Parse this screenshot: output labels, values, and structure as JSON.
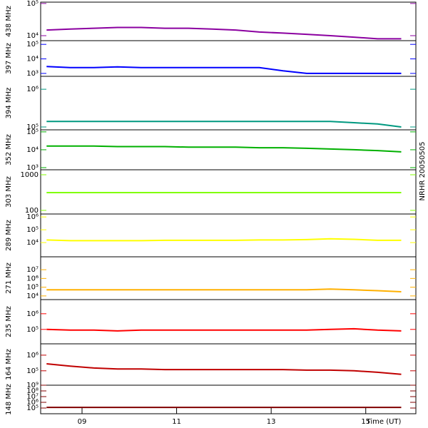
{
  "chart_data": [
    {
      "type": "line",
      "ylabel": "438 MHz",
      "color": "#8b00a0",
      "log_scale": true,
      "xlim": [
        8.125,
        16.06
      ],
      "ylim": [
        7000,
        110000
      ],
      "yticks": [
        {
          "value": 10000,
          "label": "10⁴"
        },
        {
          "value": 100000,
          "label": "10⁵"
        }
      ],
      "x": [
        8.25,
        8.75,
        9.25,
        9.75,
        10.25,
        10.75,
        11.25,
        11.75,
        12.25,
        12.75,
        13.25,
        13.75,
        14.25,
        14.75,
        15.25,
        15.75
      ],
      "values": [
        15000,
        16000,
        17000,
        18000,
        18000,
        17000,
        17000,
        16000,
        15000,
        13000,
        12000,
        11000,
        10000,
        9000,
        8000,
        8000
      ]
    },
    {
      "type": "line",
      "ylabel": "397 MHz",
      "color": "#0000ff",
      "log_scale": true,
      "xlim": [
        8.125,
        16.06
      ],
      "ylim": [
        630,
        180000
      ],
      "yticks": [
        {
          "value": 1000,
          "label": "10³"
        },
        {
          "value": 10000,
          "label": "10⁴"
        },
        {
          "value": 100000,
          "label": "10⁵"
        }
      ],
      "x": [
        8.25,
        8.75,
        9.25,
        9.75,
        10.25,
        10.75,
        11.25,
        11.75,
        12.25,
        12.75,
        13.25,
        13.75,
        14.25,
        14.75,
        15.25,
        15.75
      ],
      "values": [
        3000,
        2500,
        2500,
        2800,
        2500,
        2500,
        2500,
        2500,
        2500,
        2500,
        1500,
        1000,
        1000,
        1000,
        1000,
        1000
      ]
    },
    {
      "type": "line",
      "ylabel": "394 MHz",
      "color": "#009980",
      "log_scale": true,
      "xlim": [
        8.125,
        16.06
      ],
      "ylim": [
        84000,
        2200000
      ],
      "yticks": [
        {
          "value": 100000,
          "label": "10⁵"
        },
        {
          "value": 1000000,
          "label": "10⁶"
        }
      ],
      "x": [
        8.25,
        8.75,
        9.25,
        9.75,
        10.25,
        10.75,
        11.25,
        11.75,
        12.25,
        12.75,
        13.25,
        13.75,
        14.25,
        14.75,
        15.25,
        15.75
      ],
      "values": [
        140000,
        140000,
        140000,
        140000,
        140000,
        140000,
        140000,
        140000,
        140000,
        140000,
        140000,
        140000,
        140000,
        130000,
        120000,
        100000
      ]
    },
    {
      "type": "line",
      "ylabel": "352 MHz",
      "color": "#00b000",
      "log_scale": true,
      "xlim": [
        8.125,
        16.06
      ],
      "ylim": [
        760,
        130000
      ],
      "yticks": [
        {
          "value": 1000,
          "label": "10³"
        },
        {
          "value": 10000,
          "label": "10⁴"
        },
        {
          "value": 100000,
          "label": "10⁵"
        }
      ],
      "x": [
        8.25,
        8.75,
        9.25,
        9.75,
        10.25,
        10.75,
        11.25,
        11.75,
        12.25,
        12.75,
        13.25,
        13.75,
        14.25,
        14.75,
        15.25,
        15.75
      ],
      "values": [
        16000,
        16000,
        16000,
        15000,
        15000,
        15000,
        14000,
        14000,
        14000,
        13000,
        13000,
        12000,
        11000,
        10000,
        9000,
        7600
      ]
    },
    {
      "type": "line",
      "ylabel": "303 MHz",
      "color": "#80ff00",
      "log_scale": true,
      "xlim": [
        8.125,
        16.06
      ],
      "ylim": [
        79,
        1380
      ],
      "yticks": [
        100,
        1000
      ],
      "x": [
        8.25,
        8.75,
        9.25,
        9.75,
        10.25,
        10.75,
        11.25,
        11.75,
        12.25,
        12.75,
        13.25,
        13.75,
        14.25,
        14.75,
        15.25,
        15.75
      ],
      "values": [
        316,
        316,
        316,
        316,
        316,
        316,
        316,
        316,
        316,
        316,
        316,
        316,
        316,
        316,
        316,
        316
      ]
    },
    {
      "type": "line",
      "ylabel": "289 MHz",
      "color": "#ffff00",
      "log_scale": true,
      "xlim": [
        8.125,
        16.06
      ],
      "ylim": [
        776,
        1700000
      ],
      "yticks": [
        {
          "value": 10000,
          "label": "10⁴"
        },
        {
          "value": 100000,
          "label": "10⁵"
        },
        {
          "value": 1000000,
          "label": "10⁶"
        }
      ],
      "x": [
        8.25,
        8.75,
        9.25,
        9.75,
        10.25,
        10.75,
        11.25,
        11.75,
        12.25,
        12.75,
        13.25,
        13.75,
        14.25,
        14.75,
        15.25,
        15.75
      ],
      "values": [
        16000,
        14000,
        14000,
        14000,
        14000,
        15000,
        15000,
        15000,
        15000,
        16000,
        16000,
        17000,
        20000,
        18000,
        15000,
        15000
      ]
    },
    {
      "type": "line",
      "ylabel": "271 MHz",
      "color": "#ffb000",
      "log_scale": true,
      "xlim": [
        8.125,
        16.06
      ],
      "ylim": [
        3800,
        300000000
      ],
      "yticks": [
        {
          "value": 10000,
          "label": "10⁴"
        },
        {
          "value": 100000,
          "label": "10⁵"
        },
        {
          "value": 1000000,
          "label": "10⁶"
        },
        {
          "value": 10000000,
          "label": "10⁷"
        }
      ],
      "x": [
        8.25,
        8.75,
        9.25,
        9.75,
        10.25,
        10.75,
        11.25,
        11.75,
        12.25,
        12.75,
        13.25,
        13.75,
        14.25,
        14.75,
        15.25,
        15.75
      ],
      "values": [
        50000,
        50000,
        50000,
        50000,
        50000,
        50000,
        50000,
        50000,
        50000,
        50000,
        50000,
        50000,
        60000,
        50000,
        40000,
        30000
      ]
    },
    {
      "type": "line",
      "ylabel": "235 MHz",
      "color": "#ff0000",
      "log_scale": true,
      "xlim": [
        8.125,
        16.06
      ],
      "ylim": [
        12000,
        8000000
      ],
      "yticks": [
        {
          "value": 100000,
          "label": "10⁵"
        },
        {
          "value": 1000000,
          "label": "10⁶"
        }
      ],
      "x": [
        8.25,
        8.75,
        9.25,
        9.75,
        10.25,
        10.75,
        11.25,
        11.75,
        12.25,
        12.75,
        13.25,
        13.75,
        14.25,
        14.75,
        15.25,
        15.75
      ],
      "values": [
        100000,
        90000,
        90000,
        80000,
        90000,
        90000,
        90000,
        90000,
        90000,
        90000,
        90000,
        90000,
        100000,
        110000,
        90000,
        80000
      ]
    },
    {
      "type": "line",
      "ylabel": "164 MHz",
      "color": "#c00000",
      "log_scale": true,
      "xlim": [
        8.125,
        16.06
      ],
      "ylim": [
        12000,
        5300000
      ],
      "yticks": [
        {
          "value": 100000,
          "label": "10⁵"
        },
        {
          "value": 1000000,
          "label": "10⁶"
        }
      ],
      "x": [
        8.25,
        8.75,
        9.25,
        9.75,
        10.25,
        10.75,
        11.25,
        11.75,
        12.25,
        12.75,
        13.25,
        13.75,
        14.25,
        14.75,
        15.25,
        15.75
      ],
      "values": [
        280000,
        200000,
        150000,
        130000,
        130000,
        120000,
        120000,
        120000,
        120000,
        120000,
        120000,
        110000,
        110000,
        100000,
        80000,
        60000
      ]
    },
    {
      "type": "line",
      "ylabel": "148 MHz",
      "color": "#800000",
      "log_scale": true,
      "xlim": [
        8.125,
        16.06
      ],
      "ylim": [
        10000,
        1000000000
      ],
      "yticks": [
        {
          "value": 100000,
          "label": "10⁵"
        },
        {
          "value": 1000000,
          "label": "10⁶"
        },
        {
          "value": 10000000,
          "label": "10⁷"
        },
        {
          "value": 100000000,
          "label": "10⁸"
        },
        {
          "value": 1000000000,
          "label": "10⁹"
        }
      ],
      "x": [
        8.25,
        8.75,
        9.25,
        9.75,
        10.25,
        10.75,
        11.25,
        11.75,
        12.25,
        12.75,
        13.25,
        13.75,
        14.25,
        14.75,
        15.25,
        15.75
      ],
      "values": [
        130000,
        130000,
        130000,
        130000,
        130000,
        130000,
        130000,
        130000,
        130000,
        130000,
        130000,
        130000,
        130000,
        130000,
        130000,
        130000
      ],
      "xticks": [
        {
          "value": 9,
          "label": "09"
        },
        {
          "value": 11,
          "label": "11"
        },
        {
          "value": 13,
          "label": "13"
        },
        {
          "value": 15,
          "label": "15"
        }
      ],
      "xlabel": "Time (UT)",
      "annotation": "NRHR 20050505"
    }
  ]
}
